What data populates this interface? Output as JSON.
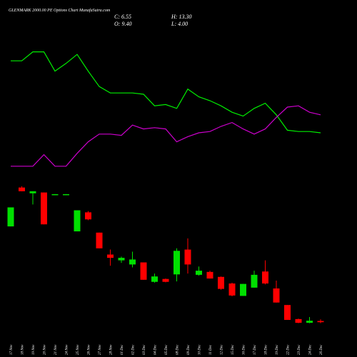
{
  "chart_data": {
    "type": "candlestick",
    "title": "GLENMARK 2000.00 PE Options  Chart MunafaSutra.com",
    "ohlc_labels": {
      "close": "C: 6.55",
      "high": "H: 13.30",
      "open": "O: 9.40",
      "low": "L: 4.00"
    },
    "categories": [
      "17 Nov",
      "18 Nov",
      "19 Nov",
      "20 Nov",
      "21 Nov",
      "24 Nov",
      "25 Nov",
      "26 Nov",
      "27 Nov",
      "28 Nov",
      "01 Dec",
      "02 Dec",
      "03 Dec",
      "04 Dec",
      "05 Dec",
      "08 Dec",
      "09 Dec",
      "10 Dec",
      "11 Dec",
      "12 Dec",
      "15 Dec",
      "16 Dec",
      "17 Dec",
      "18 Dec",
      "19 Dec",
      "22 Dec",
      "23 Dec",
      "24 Dec",
      "26 Dec"
    ],
    "open": [
      238,
      332,
      318,
      320,
      315,
      315,
      226,
      272,
      223,
      170,
      156,
      146,
      151,
      104,
      111,
      122,
      182,
      121,
      128,
      116,
      100,
      70,
      90,
      129,
      88,
      48,
      14,
      5,
      9.4
    ],
    "high": [
      284,
      335,
      323,
      320,
      316,
      316,
      277,
      275,
      223,
      182,
      165,
      177,
      151,
      124,
      112,
      185,
      209,
      141,
      131,
      117,
      102,
      99,
      131,
      156,
      107,
      48,
      15,
      19,
      13.3
    ],
    "low": [
      238,
      323,
      291,
      243,
      315,
      315,
      226,
      253,
      185,
      143,
      150,
      139,
      109,
      102,
      103,
      105,
      124,
      119,
      112,
      85,
      69,
      70,
      90,
      98,
      54,
      12,
      4,
      4,
      4
    ],
    "close": [
      284,
      323,
      323,
      243,
      316,
      316,
      277,
      255,
      185,
      162,
      162,
      158,
      109,
      117,
      104,
      179,
      146,
      131,
      112,
      87,
      71,
      99,
      121,
      100,
      54,
      12,
      5,
      10,
      6.55
    ],
    "up_color": "#00e000",
    "down_color": "#ff0000",
    "ylim": [
      0,
      340
    ],
    "lines": [
      {
        "color": "#00ee00",
        "values": [
          86,
          86,
          93,
          93,
          78,
          84,
          91,
          78,
          66,
          61,
          61,
          61,
          60,
          51,
          52,
          49,
          64,
          58,
          55,
          51,
          46,
          43,
          49,
          53,
          44,
          32,
          31,
          31,
          30
        ]
      },
      {
        "color": "#cc00cc",
        "values": [
          4,
          4,
          4,
          13,
          4,
          4,
          14,
          23,
          29,
          29,
          28,
          36,
          33,
          34,
          33,
          23,
          27,
          30,
          31,
          35,
          38,
          33,
          29,
          33,
          42,
          50,
          51,
          46,
          44
        ]
      }
    ],
    "lines_ylim": [
      0,
      100
    ]
  }
}
